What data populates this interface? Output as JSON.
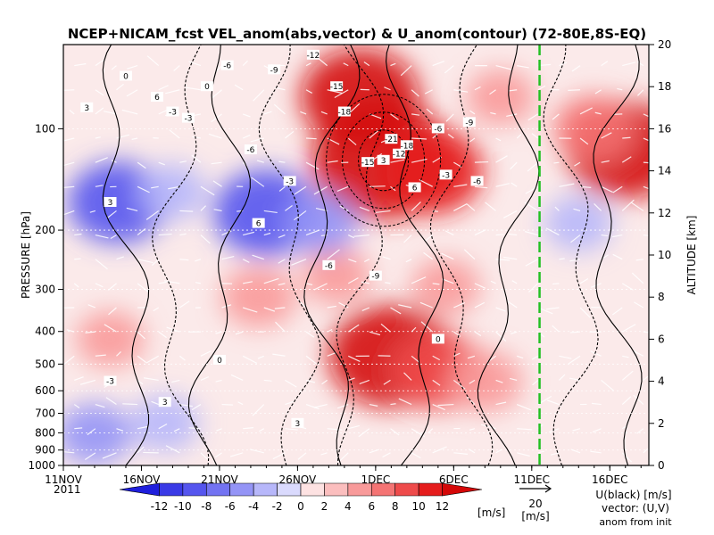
{
  "chart_data": {
    "type": "heatmap",
    "title": "NCEP+NICAM_fcst VEL_anom(abs,vector) & U_anom(contour)    (72-80E,8S-EQ)",
    "ylabel_left": "PRESSURE [hPa]",
    "ylabel_right": "ALTITUDE [km]",
    "x_ticks": [
      "11NOV",
      "16NOV",
      "21NOV",
      "26NOV",
      "1DEC",
      "6DEC",
      "11DEC",
      "16DEC"
    ],
    "x_tick_days": [
      0,
      5,
      10,
      15,
      20,
      25,
      30,
      35
    ],
    "x_year": "2011",
    "xlim_days": [
      0,
      37.5
    ],
    "pressure_ticks": [
      "100",
      "200",
      "300",
      "400",
      "500",
      "600",
      "700",
      "800",
      "900",
      "1000"
    ],
    "pressure_values": [
      100,
      200,
      300,
      400,
      500,
      600,
      700,
      800,
      900,
      1000
    ],
    "altitude_ticks": [
      "0",
      "2",
      "4",
      "6",
      "8",
      "10",
      "12",
      "14",
      "16",
      "18",
      "20"
    ],
    "altitude_values": [
      0,
      2,
      4,
      6,
      8,
      10,
      12,
      14,
      16,
      18,
      20
    ],
    "forecast_init_day": 30.5,
    "colorbar": {
      "labels": [
        "-12",
        "-10",
        "-8",
        "-6",
        "-4",
        "-2",
        "0",
        "2",
        "4",
        "6",
        "8",
        "10",
        "12"
      ],
      "unit": "[m/s]",
      "colors": [
        "#1f1fdc",
        "#3a3ae6",
        "#5555ee",
        "#7373f2",
        "#9494f6",
        "#b7b7fa",
        "#dadafd",
        "#fde2e2",
        "#fbbebe",
        "#f89a9a",
        "#f47474",
        "#ee4b4b",
        "#e51d1d",
        "#d40808"
      ]
    },
    "vector_ref": {
      "value": "20",
      "unit": "[m/s]"
    },
    "legend_note": [
      "U(black) [m/s]",
      "vector: (U,V)",
      "anom from init"
    ],
    "u_contour_labels": [
      "3",
      "0",
      "-3",
      "-6",
      "-9",
      "-12",
      "-15",
      "-18",
      "-21",
      "3",
      "6",
      "-3",
      "-6",
      "-9",
      "-12",
      "-15",
      "-18",
      "6",
      "0",
      "-3",
      "-6",
      "-3",
      "-6",
      "-9",
      "3",
      "6",
      "0",
      "-3",
      "3",
      "-6",
      "3",
      "0"
    ],
    "anomaly_blobs": [
      {
        "day": 20.5,
        "alt_km": 14.5,
        "value": 16
      },
      {
        "day": 19.0,
        "alt_km": 17.5,
        "value": 12
      },
      {
        "day": 23.5,
        "alt_km": 14.0,
        "value": 10
      },
      {
        "day": 21.0,
        "alt_km": 5.2,
        "value": 13
      },
      {
        "day": 24.0,
        "alt_km": 4.5,
        "value": 8
      },
      {
        "day": 27.0,
        "alt_km": 4.0,
        "value": 5
      },
      {
        "day": 36.0,
        "alt_km": 15.0,
        "value": 12
      },
      {
        "day": 34.0,
        "alt_km": 16.0,
        "value": 6
      },
      {
        "day": 12.5,
        "alt_km": 8.0,
        "value": 5
      },
      {
        "day": 3.0,
        "alt_km": 6.0,
        "value": 4
      },
      {
        "day": 17.5,
        "alt_km": 9.0,
        "value": 4
      },
      {
        "day": 3.5,
        "alt_km": 12.5,
        "value": -9
      },
      {
        "day": 13.0,
        "alt_km": 12.0,
        "value": -10
      },
      {
        "day": 16.5,
        "alt_km": 11.5,
        "value": -5
      },
      {
        "day": 7.0,
        "alt_km": 13.0,
        "value": -4
      },
      {
        "day": 2.0,
        "alt_km": 1.5,
        "value": -5
      },
      {
        "day": 6.5,
        "alt_km": 2.0,
        "value": -4
      },
      {
        "day": 33.0,
        "alt_km": 11.5,
        "value": -4
      },
      {
        "day": 24.5,
        "alt_km": 8.5,
        "value": 4
      },
      {
        "day": 28.0,
        "alt_km": 17.5,
        "value": 4
      }
    ]
  }
}
